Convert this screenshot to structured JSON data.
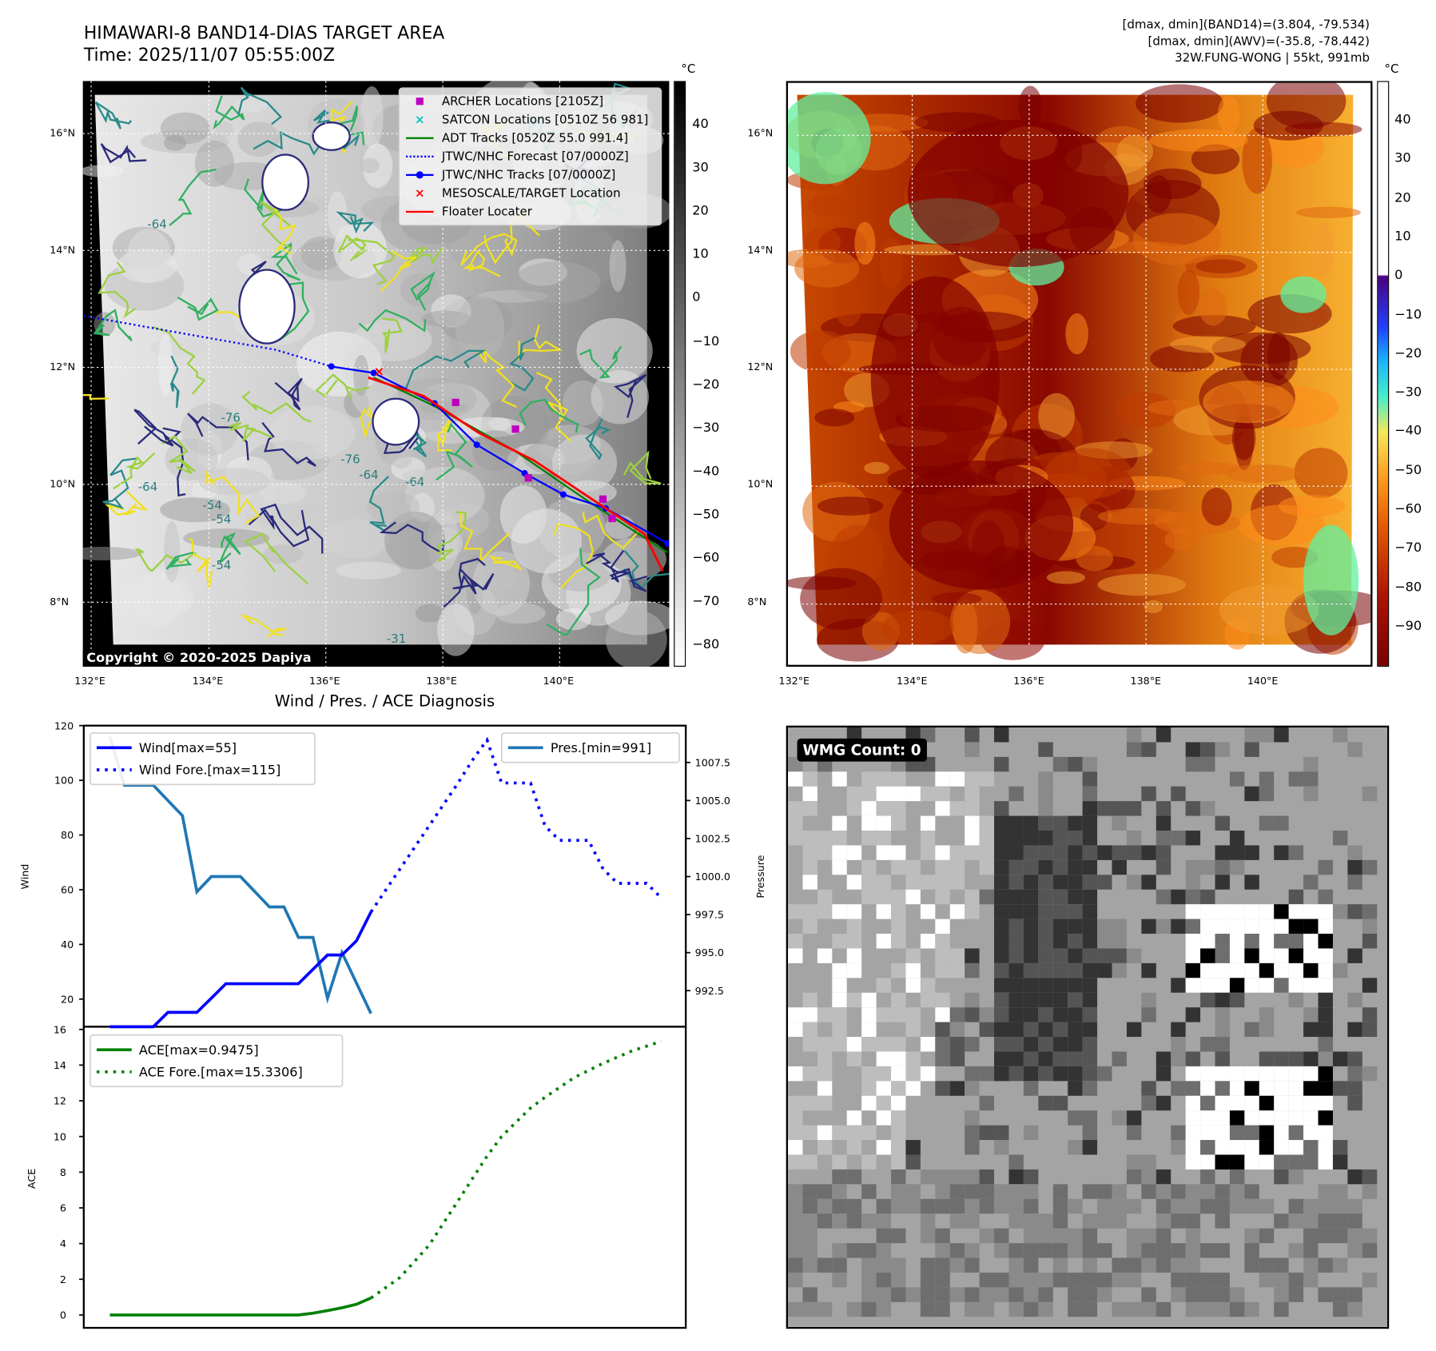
{
  "header": {
    "title_line1": "HIMAWARI-8 BAND14-DIAS TARGET AREA",
    "title_line2": "Time: 2025/11/07 05:55:00Z",
    "stats": [
      "[dmax, dmin](BAND14)=(3.804, -79.534)",
      "[dmax, dmin](AWV)=(-35.8, -78.442)",
      "32W.FUNG-WONG | 55kt, 991mb"
    ]
  },
  "map_common": {
    "lat_ticks": [
      "16°N",
      "14°N",
      "12°N",
      "10°N",
      "8°N"
    ],
    "lon_ticks": [
      "132°E",
      "134°E",
      "136°E",
      "138°E",
      "140°E"
    ],
    "unit": "°C"
  },
  "map1": {
    "colorbar_ticks": [
      "40",
      "30",
      "20",
      "10",
      "0",
      "−10",
      "−20",
      "−30",
      "−40",
      "−50",
      "−60",
      "−70",
      "−80"
    ],
    "copyright": "Copyright © 2020-2025 Dapiya",
    "contour_labels": [
      "-64",
      "-76",
      "-64",
      "-76",
      "-64",
      "-54",
      "-54",
      "-54",
      "-64",
      "-31"
    ],
    "legend": [
      {
        "label": "ARCHER Locations [2105Z]",
        "marker": "square",
        "color": "#c000c0"
      },
      {
        "label": "SATCON Locations [0510Z 56 981]",
        "marker": "x",
        "color": "#00c0c0"
      },
      {
        "label": "ADT Tracks [0520Z 55.0 991.4]",
        "marker": "line",
        "color": "#008000"
      },
      {
        "label": "JTWC/NHC Forecast [07/0000Z]",
        "marker": "dotted",
        "color": "#0000ff"
      },
      {
        "label": "JTWC/NHC Tracks [07/0000Z]",
        "marker": "line-dot",
        "color": "#0000ff"
      },
      {
        "label": "MESOSCALE/TARGET Location",
        "marker": "x",
        "color": "#ff0000"
      },
      {
        "label": "Floater Locater",
        "marker": "line",
        "color": "#ff0000"
      }
    ]
  },
  "map2": {
    "colorbar_ticks": [
      "40",
      "30",
      "20",
      "10",
      "0",
      "−10",
      "−20",
      "−30",
      "−40",
      "−50",
      "−60",
      "−70",
      "−80",
      "−90"
    ]
  },
  "diagnosis_title": "Wind / Pres. / ACE Diagnosis",
  "wmg": {
    "label": "WMG Count: 0"
  },
  "chart_data": [
    {
      "type": "line",
      "title": "Wind / Pres. / ACE Diagnosis",
      "ylabel": "Wind",
      "y2label": "Pressure",
      "ylim": [
        15,
        120
      ],
      "y2lim": [
        990.5,
        1009.5
      ],
      "yticks": [
        "120",
        "100",
        "80",
        "60",
        "40",
        "20"
      ],
      "y2ticks": [
        "1007.5",
        "1005.0",
        "1002.5",
        "1000.0",
        "997.5",
        "995.0",
        "992.5"
      ],
      "xlim": [
        -1.8,
        39.7
      ],
      "legend_left": [
        "Wind[max=55]",
        "Wind Fore.[max=115]"
      ],
      "legend_right": [
        "Pres.[min=991]"
      ],
      "series": [
        {
          "name": "Wind[max=55]",
          "color": "#0000ff",
          "style": "solid",
          "x": [
            0,
            1,
            2,
            3,
            4,
            5,
            6,
            7,
            8,
            9,
            10,
            11,
            12,
            13,
            14,
            15,
            16,
            17,
            18
          ],
          "y": [
            15,
            15,
            15,
            15,
            20,
            20,
            20,
            25,
            30,
            30,
            30,
            30,
            30,
            30,
            35,
            40,
            40,
            45,
            55
          ]
        },
        {
          "name": "Wind Fore.[max=115]",
          "color": "#0000ff",
          "style": "dotted",
          "x": [
            18,
            20,
            22,
            24,
            25,
            26,
            27,
            29,
            30,
            31,
            33,
            34,
            35,
            37,
            38
          ],
          "y": [
            55,
            70,
            85,
            100,
            108,
            115,
            100,
            100,
            85,
            80,
            80,
            70,
            65,
            65,
            60
          ]
        },
        {
          "name": "Pres.[min=991]",
          "color": "#1f77b4",
          "style": "solid",
          "axis": "right",
          "x": [
            0,
            1,
            3,
            5,
            6,
            7,
            9,
            11,
            12,
            13,
            14,
            15,
            16,
            18
          ],
          "y": [
            1009.2,
            1006,
            1006,
            1004,
            999,
            1000,
            1000,
            998,
            998,
            996,
            996,
            992,
            995,
            991
          ]
        }
      ]
    },
    {
      "type": "line",
      "ylabel": "ACE",
      "ylim": [
        -0.8,
        16.2
      ],
      "yticks": [
        "16",
        "14",
        "12",
        "10",
        "8",
        "6",
        "4",
        "2",
        "0"
      ],
      "xlim": [
        -1.8,
        39.7
      ],
      "legend": [
        "ACE[max=0.9475]",
        "ACE Fore.[max=15.3306]"
      ],
      "series": [
        {
          "name": "ACE[max=0.9475]",
          "color": "#008000",
          "style": "solid",
          "x": [
            0,
            13,
            14,
            15,
            16,
            17,
            18
          ],
          "y": [
            0,
            0,
            0.1,
            0.25,
            0.4,
            0.6,
            0.9475
          ]
        },
        {
          "name": "ACE Fore.[max=15.3306]",
          "color": "#008000",
          "style": "dotted",
          "x": [
            18,
            20,
            22,
            24,
            26,
            27,
            28,
            29,
            30,
            32,
            34,
            36,
            38
          ],
          "y": [
            0.9475,
            2.1,
            3.9,
            6.4,
            8.9,
            10.0,
            10.8,
            11.6,
            12.2,
            13.3,
            14.1,
            14.8,
            15.3306
          ]
        }
      ]
    }
  ]
}
